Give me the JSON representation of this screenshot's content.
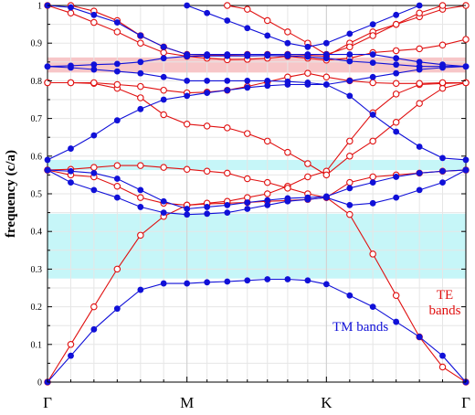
{
  "chart_data": {
    "type": "line",
    "ylabel": "frequency (c/a)",
    "ylim": [
      0,
      1
    ],
    "yticks": [
      "0",
      "0.1",
      "0.2",
      "0.3",
      "0.4",
      "0.5",
      "0.6",
      "0.7",
      "0.8",
      "0.9",
      "1"
    ],
    "x_ticks": [
      "Γ",
      "M",
      "K",
      "Γ"
    ],
    "grid": true,
    "colors": {
      "te": "#e01010",
      "tm": "#1010d8",
      "band_gap_te": "#f7c6c8",
      "band_gap_tm": "#c6f6f8"
    },
    "gaps": [
      {
        "kind": "te",
        "from": 0.822,
        "to": 0.862
      },
      {
        "kind": "tm",
        "from": 0.563,
        "to": 0.59
      },
      {
        "kind": "tm",
        "from": 0.275,
        "to": 0.447
      }
    ],
    "x_positions": [
      0,
      0.167,
      0.333,
      0.5,
      0.667,
      0.833,
      1,
      1.144,
      1.289,
      1.433,
      1.577,
      1.722,
      1.866,
      2,
      2.167,
      2.333,
      2.5,
      2.667,
      2.833,
      3
    ],
    "annotations": {
      "te": "TE\nbands",
      "tm": "TM bands"
    },
    "series": [
      {
        "polarization": "TM",
        "values": [
          0,
          0.07,
          0.14,
          0.195,
          0.245,
          0.262,
          0.262,
          0.265,
          0.267,
          0.27,
          0.273,
          0.273,
          0.27,
          0.26,
          0.23,
          0.2,
          0.16,
          0.12,
          0.07,
          0
        ]
      },
      {
        "polarization": "TM",
        "values": [
          0.563,
          0.53,
          0.51,
          0.49,
          0.465,
          0.45,
          0.445,
          0.447,
          0.45,
          0.46,
          0.47,
          0.48,
          0.485,
          0.49,
          0.47,
          0.475,
          0.49,
          0.51,
          0.53,
          0.563
        ]
      },
      {
        "polarization": "TM",
        "values": [
          0.563,
          0.56,
          0.555,
          0.54,
          0.51,
          0.48,
          0.46,
          0.465,
          0.47,
          0.477,
          0.483,
          0.488,
          0.49,
          0.493,
          0.515,
          0.53,
          0.545,
          0.555,
          0.56,
          0.563
        ]
      },
      {
        "polarization": "TM",
        "values": [
          0.59,
          0.62,
          0.655,
          0.695,
          0.725,
          0.75,
          0.76,
          0.768,
          0.775,
          0.782,
          0.787,
          0.79,
          0.79,
          0.79,
          0.76,
          0.71,
          0.665,
          0.625,
          0.595,
          0.59
        ]
      },
      {
        "polarization": "TM",
        "values": [
          0.838,
          0.84,
          0.843,
          0.845,
          0.85,
          0.86,
          0.865,
          0.866,
          0.866,
          0.866,
          0.867,
          0.866,
          0.864,
          0.86,
          0.852,
          0.848,
          0.843,
          0.838,
          0.838,
          0.838
        ]
      },
      {
        "polarization": "TM",
        "values": [
          0.838,
          0.835,
          0.83,
          0.825,
          0.82,
          0.81,
          0.8,
          0.8,
          0.8,
          0.8,
          0.8,
          0.798,
          0.795,
          0.79,
          0.8,
          0.81,
          0.82,
          0.83,
          0.835,
          0.838
        ]
      },
      {
        "polarization": "TM",
        "values": [
          1,
          0.995,
          0.975,
          0.955,
          0.92,
          0.89,
          0.87,
          0.87,
          0.87,
          0.87,
          0.87,
          0.87,
          0.87,
          0.87,
          0.87,
          0.87,
          0.86,
          0.85,
          0.843,
          0.838
        ]
      },
      {
        "polarization": "TM",
        "values": [
          null,
          null,
          null,
          null,
          null,
          null,
          1,
          0.98,
          0.96,
          0.94,
          0.92,
          0.9,
          0.89,
          0.9,
          0.925,
          0.95,
          0.975,
          1,
          null,
          null
        ]
      },
      {
        "polarization": "TE",
        "values": [
          0,
          0.1,
          0.2,
          0.3,
          0.39,
          0.44,
          0.47,
          0.473,
          0.475,
          0.477,
          0.48,
          0.482,
          0.485,
          0.49,
          0.445,
          0.34,
          0.23,
          0.12,
          0.04,
          0
        ]
      },
      {
        "polarization": "TE",
        "values": [
          0.563,
          0.55,
          0.545,
          0.52,
          0.49,
          0.475,
          0.47,
          0.475,
          0.48,
          0.49,
          0.5,
          0.52,
          0.545,
          0.56,
          0.64,
          0.715,
          0.765,
          0.79,
          0.793,
          0.795
        ]
      },
      {
        "polarization": "TE",
        "values": [
          0.563,
          0.565,
          0.57,
          0.575,
          0.575,
          0.57,
          0.565,
          0.56,
          0.555,
          0.54,
          0.53,
          0.515,
          0.5,
          0.49,
          0.53,
          0.545,
          0.55,
          0.555,
          0.56,
          0.563
        ]
      },
      {
        "polarization": "TE",
        "values": [
          0.795,
          0.795,
          0.793,
          0.78,
          0.755,
          0.71,
          0.685,
          0.68,
          0.675,
          0.66,
          0.64,
          0.61,
          0.58,
          0.55,
          0.6,
          0.64,
          0.69,
          0.74,
          0.78,
          0.795
        ]
      },
      {
        "polarization": "TE",
        "values": [
          0.795,
          0.795,
          0.795,
          0.79,
          0.785,
          0.775,
          0.768,
          0.77,
          0.775,
          0.785,
          0.797,
          0.81,
          0.82,
          0.81,
          0.8,
          0.795,
          0.793,
          0.793,
          0.795,
          0.795
        ]
      },
      {
        "polarization": "TE",
        "values": [
          1,
          0.98,
          0.955,
          0.93,
          0.9,
          0.875,
          0.865,
          0.86,
          0.856,
          0.857,
          0.86,
          0.865,
          0.86,
          0.855,
          0.86,
          0.875,
          0.88,
          0.885,
          0.895,
          0.91
        ]
      },
      {
        "polarization": "TE",
        "values": [
          null,
          1,
          0.985,
          0.96,
          0.92,
          0.89,
          0.87,
          0.868,
          0.868,
          0.87,
          0.87,
          0.87,
          0.868,
          0.865,
          0.9,
          0.93,
          0.95,
          0.97,
          0.99,
          1
        ]
      },
      {
        "polarization": "TE",
        "values": [
          null,
          null,
          null,
          null,
          null,
          null,
          null,
          null,
          1,
          0.99,
          0.96,
          0.93,
          0.9,
          0.87,
          0.89,
          0.92,
          0.95,
          0.98,
          1,
          null
        ]
      }
    ]
  }
}
